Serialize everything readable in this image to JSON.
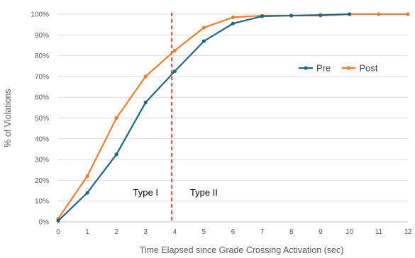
{
  "chart_data": {
    "type": "line",
    "title": "",
    "xlabel": "Time Elapsed since Grade Crossing Activation (sec)",
    "ylabel": "% of Violations",
    "xlim": [
      0,
      12
    ],
    "ylim": [
      0,
      100
    ],
    "x_ticks": [
      0,
      1,
      2,
      3,
      4,
      5,
      6,
      7,
      8,
      9,
      10,
      11,
      12
    ],
    "y_ticks": [
      "0%",
      "10%",
      "20%",
      "30%",
      "40%",
      "50%",
      "60%",
      "70%",
      "80%",
      "90%",
      "100%"
    ],
    "grid": "horizontal",
    "legend_position": "right",
    "series": [
      {
        "name": "Pre",
        "color": "#1f6680",
        "x": [
          0,
          1,
          2,
          3,
          4,
          5,
          6,
          7,
          8,
          9,
          10
        ],
        "values": [
          0.5,
          14,
          32.5,
          57.5,
          72.5,
          87,
          95.5,
          99,
          99.3,
          99.6,
          100
        ]
      },
      {
        "name": "Post",
        "color": "#ed7d31",
        "x": [
          0,
          1,
          2,
          3,
          4,
          5,
          6,
          7,
          8,
          9,
          10,
          11,
          12
        ],
        "values": [
          1.5,
          22,
          50,
          70,
          82.5,
          93.5,
          98.5,
          99.3,
          99.3,
          99.3,
          100,
          100,
          100
        ]
      }
    ],
    "annotations": [
      {
        "type": "vline",
        "x": 3.9,
        "color": "#e00000",
        "style": "dashed"
      },
      {
        "type": "text",
        "text": "Type I",
        "x": 3.0,
        "y": 14
      },
      {
        "type": "text",
        "text": "Type II",
        "x": 5.0,
        "y": 14
      }
    ]
  }
}
